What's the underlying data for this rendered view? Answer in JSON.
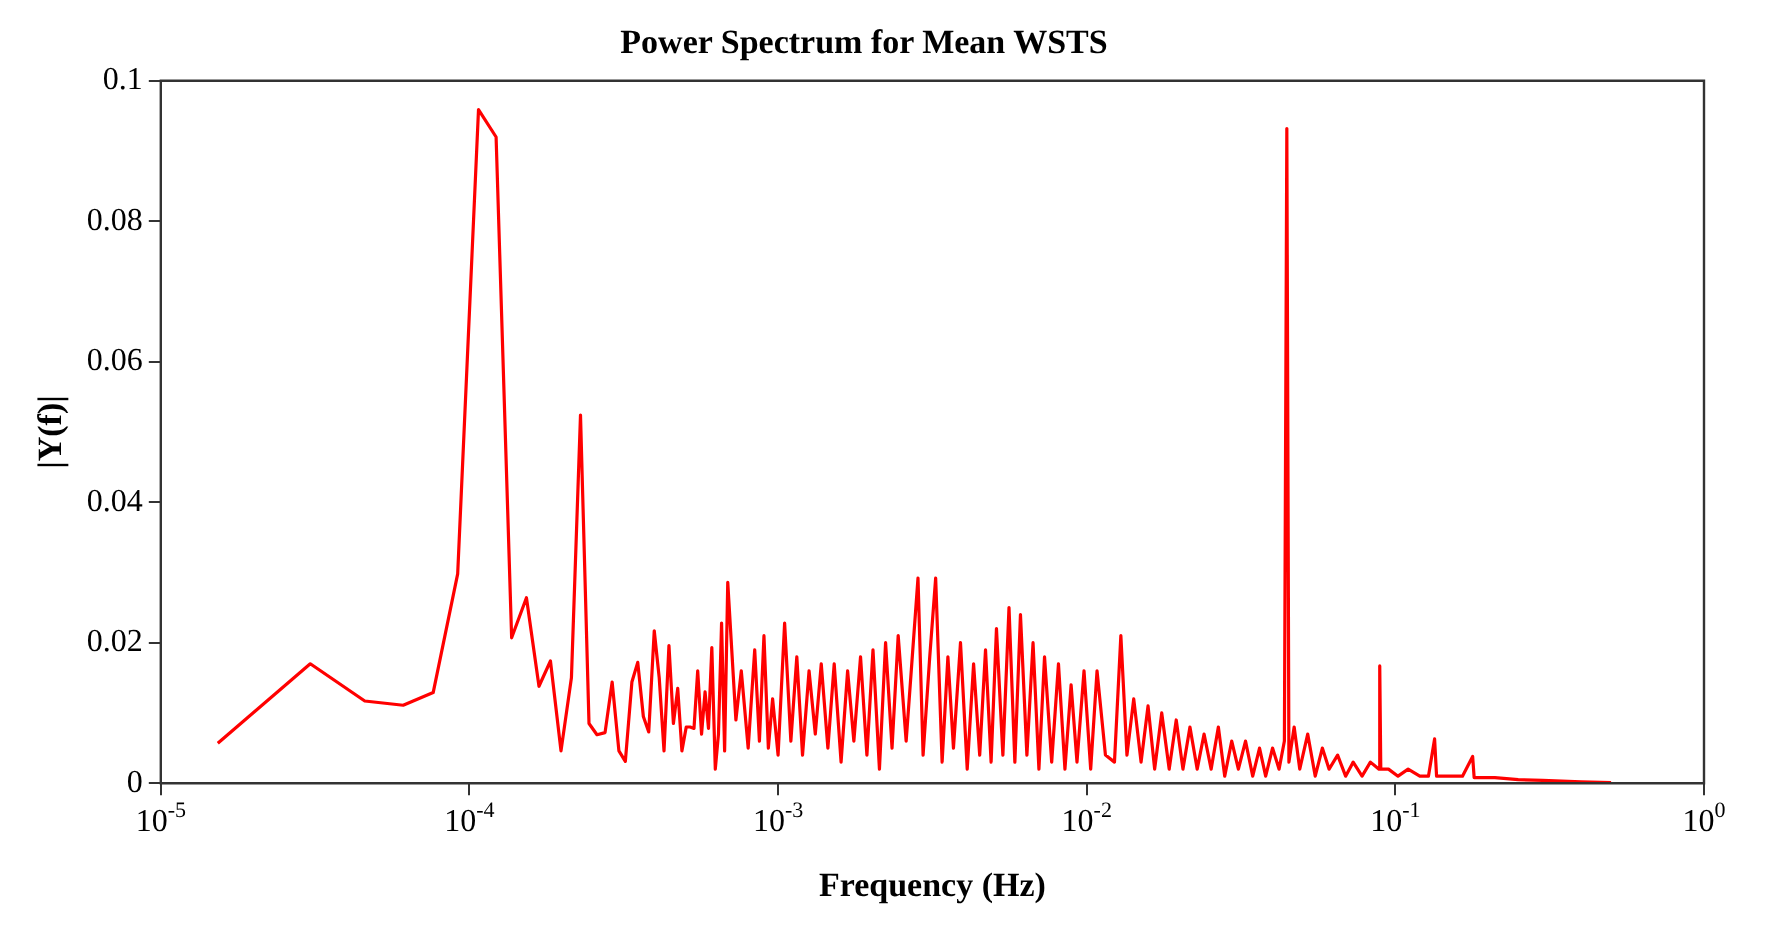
{
  "chart_data": {
    "type": "line",
    "title": "Power Spectrum for Mean WSTS",
    "xlabel": "Frequency (Hz)",
    "ylabel": "|Y(f)|",
    "x": [
      1.53e-05,
      3.05e-05,
      4.58e-05,
      6.1e-05,
      7.63e-05,
      9.16e-05,
      0.000107,
      0.000122,
      0.000137,
      0.000153,
      0.000168,
      0.000183,
      0.000198,
      0.000214,
      0.000229,
      0.000244,
      0.000259,
      0.000275,
      0.00029,
      0.000305,
      0.00032,
      0.000336,
      0.000351,
      0.000366,
      0.000381,
      0.000397,
      0.000412,
      0.000427,
      0.000443,
      0.000458,
      0.000473,
      0.000488,
      0.000504,
      0.000519,
      0.000534,
      0.000549,
      0.000565,
      0.00058,
      0.000595,
      0.00061,
      0.000626,
      0.000641,
      0.000656,
      0.000671,
      0.000687,
      0.00073,
      0.00076,
      0.0008,
      0.00084,
      0.00087,
      0.0009,
      0.00093,
      0.00096,
      0.001,
      0.00105,
      0.0011,
      0.00115,
      0.0012,
      0.00126,
      0.00132,
      0.00138,
      0.00145,
      0.00152,
      0.0016,
      0.00168,
      0.00176,
      0.00185,
      0.00194,
      0.00203,
      0.00213,
      0.00223,
      0.00234,
      0.00245,
      0.0026,
      0.00284,
      0.00295,
      0.0031,
      0.00324,
      0.0034,
      0.00355,
      0.0037,
      0.0039,
      0.0041,
      0.0043,
      0.0045,
      0.0047,
      0.0049,
      0.0051,
      0.00535,
      0.0056,
      0.00585,
      0.0061,
      0.0064,
      0.0067,
      0.007,
      0.0073,
      0.0077,
      0.0081,
      0.0085,
      0.0089,
      0.0093,
      0.0098,
      0.0103,
      0.0108,
      0.0115,
      0.0123,
      0.0129,
      0.0135,
      0.0142,
      0.015,
      0.0158,
      0.0166,
      0.0175,
      0.0185,
      0.0195,
      0.0205,
      0.0216,
      0.0228,
      0.024,
      0.0253,
      0.0267,
      0.028,
      0.0295,
      0.031,
      0.0327,
      0.0345,
      0.0363,
      0.038,
      0.04,
      0.042,
      0.0437,
      0.0445,
      0.0452,
      0.047,
      0.049,
      0.052,
      0.055,
      0.058,
      0.061,
      0.065,
      0.069,
      0.073,
      0.078,
      0.083,
      0.0885,
      0.089,
      0.0897,
      0.095,
      0.102,
      0.11,
      0.12,
      0.128,
      0.134,
      0.136,
      0.15,
      0.165,
      0.178,
      0.18,
      0.21,
      0.25,
      0.3,
      0.4,
      0.5
    ],
    "series": [
      {
        "color": "#ff0000",
        "values": [
          0.0057,
          0.017,
          0.0117,
          0.0111,
          0.0129,
          0.0298,
          0.0959,
          0.092,
          0.0207,
          0.0264,
          0.0138,
          0.0174,
          0.0046,
          0.015,
          0.0524,
          0.0085,
          0.0069,
          0.0072,
          0.0144,
          0.0046,
          0.0031,
          0.0144,
          0.0172,
          0.0095,
          0.0073,
          0.0217,
          0.015,
          0.0046,
          0.0196,
          0.0085,
          0.0135,
          0.0046,
          0.008,
          0.008,
          0.0078,
          0.016,
          0.007,
          0.013,
          0.0078,
          0.0193,
          0.002,
          0.007,
          0.0228,
          0.0046,
          0.0286,
          0.009,
          0.016,
          0.005,
          0.019,
          0.006,
          0.021,
          0.005,
          0.012,
          0.004,
          0.0228,
          0.006,
          0.018,
          0.004,
          0.016,
          0.007,
          0.017,
          0.005,
          0.017,
          0.003,
          0.016,
          0.006,
          0.018,
          0.004,
          0.019,
          0.002,
          0.02,
          0.005,
          0.021,
          0.006,
          0.0292,
          0.004,
          0.018,
          0.0292,
          0.003,
          0.018,
          0.005,
          0.02,
          0.002,
          0.017,
          0.004,
          0.019,
          0.003,
          0.022,
          0.004,
          0.025,
          0.003,
          0.024,
          0.004,
          0.02,
          0.002,
          0.018,
          0.003,
          0.017,
          0.002,
          0.014,
          0.003,
          0.016,
          0.002,
          0.016,
          0.004,
          0.003,
          0.021,
          0.004,
          0.012,
          0.003,
          0.011,
          0.002,
          0.01,
          0.002,
          0.009,
          0.002,
          0.008,
          0.002,
          0.007,
          0.002,
          0.008,
          0.001,
          0.006,
          0.002,
          0.006,
          0.001,
          0.005,
          0.001,
          0.005,
          0.002,
          0.006,
          0.0932,
          0.003,
          0.008,
          0.002,
          0.007,
          0.001,
          0.005,
          0.002,
          0.004,
          0.001,
          0.003,
          0.001,
          0.003,
          0.002,
          0.0167,
          0.002,
          0.002,
          0.001,
          0.002,
          0.001,
          0.001,
          0.0063,
          0.001,
          0.001,
          0.001,
          0.0038,
          0.0008,
          0.0008,
          0.0005,
          0.0004,
          0.0002,
          0.0001
        ]
      }
    ],
    "log": "x",
    "xlim": [
      1e-05,
      1
    ],
    "xticks": [
      {
        "value": 1e-05,
        "label": "10$^{-5}$"
      },
      {
        "value": 0.0001,
        "label": "10$^{-4}$"
      },
      {
        "value": 0.001,
        "label": "10$^{-3}$"
      },
      {
        "value": 0.01,
        "label": "10$^{-2}$"
      },
      {
        "value": 0.1,
        "label": "10$^{-1}$"
      },
      {
        "value": 1,
        "label": "10$^{0}$"
      }
    ],
    "ylim": [
      0,
      0.1
    ],
    "yticks": [
      0,
      0.02,
      0.04,
      0.06,
      0.08,
      0.1
    ],
    "grid": false,
    "legend": false,
    "marker": "none",
    "line_style": "solid"
  }
}
